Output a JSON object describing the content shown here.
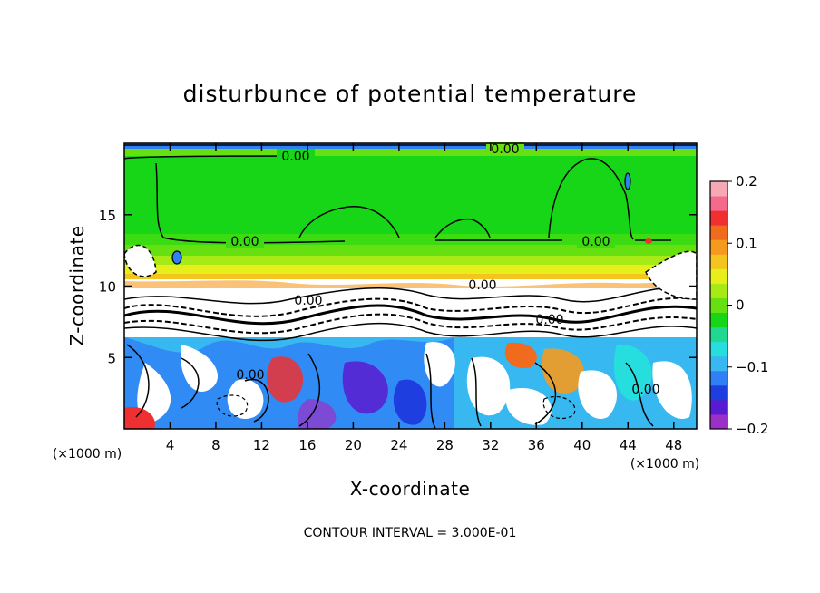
{
  "chart_data": {
    "type": "heatmap",
    "title": "disturbunce of potential temperature",
    "xlabel": "X-coordinate",
    "ylabel": "Z-coordinate",
    "x_unit_left": "(×1000 m)",
    "x_unit_right": "(×1000 m)",
    "xlim": [
      0,
      50
    ],
    "ylim": [
      0,
      20
    ],
    "xticks": [
      4,
      8,
      12,
      16,
      20,
      24,
      28,
      32,
      36,
      40,
      44,
      48
    ],
    "yticks": [
      5,
      10,
      15
    ],
    "footer": "CONTOUR INTERVAL = 3.000E-01",
    "colorbar": {
      "ticks": [
        "0.2",
        "0.1",
        "0",
        "−0.1",
        "−0.2"
      ],
      "range": [
        -0.2,
        0.2
      ],
      "colors": [
        "#9b30c8",
        "#5a1bd0",
        "#1f3ee0",
        "#2f7ff5",
        "#37b8f0",
        "#27dede",
        "#20d890",
        "#17d617",
        "#66e010",
        "#a8ea15",
        "#e6ef1a",
        "#f4c51e",
        "#f59a1e",
        "#f06b1e",
        "#f03030",
        "#f56a8a",
        "#f7a8b5"
      ]
    },
    "contour_labels": [
      {
        "text": "0.00",
        "x": 15.1,
        "y": 19.0
      },
      {
        "text": "0.00",
        "x": 33.3,
        "y": 19.7
      },
      {
        "text": "0.00",
        "x": 10.6,
        "y": 13.1
      },
      {
        "text": "0.00",
        "x": 41.2,
        "y": 13.1
      },
      {
        "text": "0.00",
        "x": 16.4,
        "y": 8.7
      },
      {
        "text": "0.00",
        "x": 31.2,
        "y": 9.8
      },
      {
        "text": "0.00",
        "x": 37.6,
        "y": 7.5
      },
      {
        "text": "0.00",
        "x": 10.8,
        "y": 3.6
      },
      {
        "text": "0.00",
        "x": 44.5,
        "y": 2.4
      }
    ]
  }
}
